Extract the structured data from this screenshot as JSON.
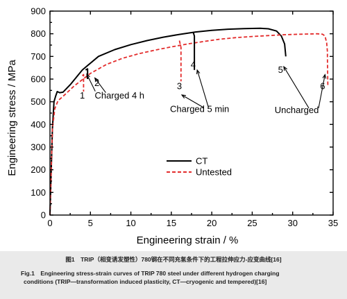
{
  "chart_data": {
    "type": "line",
    "xlabel": "Engineering strain / %",
    "ylabel": "Engineering stress / MPa",
    "xlim": [
      0,
      35
    ],
    "ylim": [
      0,
      900
    ],
    "xticks": [
      0,
      5,
      10,
      15,
      20,
      25,
      30,
      35
    ],
    "yticks": [
      0,
      100,
      200,
      300,
      400,
      500,
      600,
      700,
      800,
      900
    ],
    "xtick_labels": [
      "0",
      "5",
      "10",
      "15",
      "20",
      "25",
      "30",
      "35"
    ],
    "ytick_labels": [
      "0",
      "100",
      "200",
      "300",
      "400",
      "500",
      "600",
      "700",
      "800",
      "900"
    ],
    "grid": false,
    "legend_position": "center",
    "series": [
      {
        "name": "CT",
        "style": "solid",
        "color": "#000000",
        "points": [
          [
            0,
            0
          ],
          [
            0.3,
            380
          ],
          [
            0.5,
            500
          ],
          [
            0.7,
            525
          ],
          [
            0.9,
            545
          ],
          [
            1.2,
            540
          ],
          [
            1.6,
            542
          ],
          [
            2.5,
            575
          ],
          [
            4,
            640
          ],
          [
            6,
            700
          ],
          [
            8,
            730
          ],
          [
            10,
            752
          ],
          [
            12,
            770
          ],
          [
            14,
            785
          ],
          [
            16,
            797
          ],
          [
            18,
            808
          ],
          [
            20,
            815
          ],
          [
            22,
            820
          ],
          [
            24,
            823
          ],
          [
            26,
            824
          ],
          [
            27,
            822
          ],
          [
            28,
            812
          ],
          [
            28.6,
            790
          ],
          [
            29,
            755
          ],
          [
            29.1,
            720
          ],
          [
            29.15,
            700
          ]
        ]
      },
      {
        "name": "Untested",
        "style": "dashed",
        "color": "#e32b2b",
        "points": [
          [
            0,
            0
          ],
          [
            0.3,
            380
          ],
          [
            0.6,
            470
          ],
          [
            1,
            505
          ],
          [
            1.5,
            520
          ],
          [
            3,
            570
          ],
          [
            5,
            625
          ],
          [
            7,
            665
          ],
          [
            9,
            692
          ],
          [
            11,
            712
          ],
          [
            13,
            728
          ],
          [
            15,
            742
          ],
          [
            17,
            755
          ],
          [
            19,
            766
          ],
          [
            21,
            776
          ],
          [
            23,
            783
          ],
          [
            25,
            788
          ],
          [
            27,
            792
          ],
          [
            29,
            796
          ],
          [
            31,
            798
          ],
          [
            33,
            800
          ],
          [
            33.7,
            798
          ],
          [
            34,
            790
          ],
          [
            34.2,
            760
          ],
          [
            34.3,
            720
          ],
          [
            34.3,
            690
          ],
          [
            34.35,
            570
          ]
        ]
      },
      {
        "name": "",
        "style": "solid",
        "color": "#000000",
        "points": [
          [
            4.4,
            640
          ],
          [
            4.65,
            645
          ],
          [
            4.65,
            600
          ]
        ]
      },
      {
        "name": "",
        "style": "dashed",
        "color": "#e32b2b",
        "points": [
          [
            4.0,
            615
          ],
          [
            4.15,
            620
          ],
          [
            4.15,
            545
          ]
        ]
      },
      {
        "name": "",
        "style": "solid",
        "color": "#000000",
        "points": [
          [
            17.7,
            808
          ],
          [
            17.85,
            790
          ],
          [
            17.85,
            640
          ]
        ]
      },
      {
        "name": "",
        "style": "dashed",
        "color": "#e32b2b",
        "points": [
          [
            16.0,
            770
          ],
          [
            16.2,
            740
          ],
          [
            16.2,
            590
          ]
        ]
      }
    ],
    "annotations": [
      {
        "text": "1",
        "x": 4.0,
        "y": 515
      },
      {
        "text": "2",
        "x": 5.8,
        "y": 570
      },
      {
        "text": "Charged 4 h",
        "x": 8.6,
        "y": 515
      },
      {
        "text": "3",
        "x": 16.0,
        "y": 555
      },
      {
        "text": "4",
        "x": 17.7,
        "y": 650
      },
      {
        "text": "Charged 5 min",
        "x": 18.5,
        "y": 455
      },
      {
        "text": "5",
        "x": 28.5,
        "y": 628
      },
      {
        "text": "6",
        "x": 33.7,
        "y": 555
      },
      {
        "text": "Uncharged",
        "x": 30.5,
        "y": 450
      }
    ],
    "callouts": [
      {
        "from": [
          5.6,
          546
        ],
        "to": [
          4.55,
          622
        ]
      },
      {
        "from": [
          6.9,
          540
        ],
        "to": [
          5.55,
          605
        ]
      },
      {
        "from": [
          19.0,
          474
        ],
        "to": [
          16.3,
          530
        ]
      },
      {
        "from": [
          19.6,
          474
        ],
        "to": [
          18.2,
          640
        ]
      },
      {
        "from": [
          32.0,
          472
        ],
        "to": [
          28.9,
          655
        ]
      },
      {
        "from": [
          33.2,
          472
        ],
        "to": [
          34.0,
          620
        ]
      }
    ]
  },
  "caption": {
    "cn": "图1　TRIP（相变诱发塑性）780钢在不同充氢条件下的工程拉伸应力-应变曲线[16]",
    "en_line1": "Fig.1　Engineering stress-strain curves of TRIP 780 steel under different hydrogen charging",
    "en_line2": "conditions (TRIP—transformation induced plasticity, CT—cryogenic and tempered)[16]"
  }
}
